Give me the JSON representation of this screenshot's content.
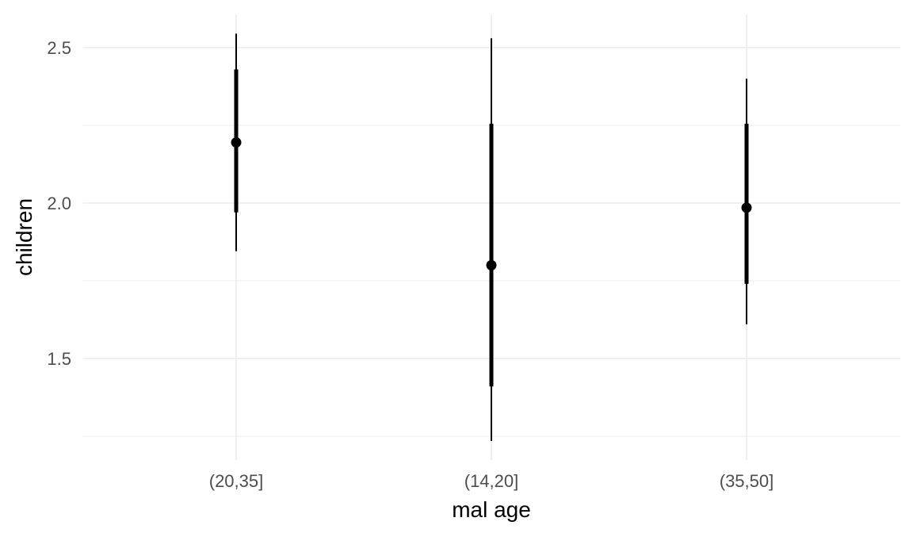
{
  "chart_data": {
    "type": "pointrange",
    "xlabel": "mal age",
    "ylabel": "children",
    "categories": [
      "(20,35]",
      "(14,20]",
      "(35,50]"
    ],
    "points": [
      {
        "category": "(20,35]",
        "estimate": 2.195,
        "inner": [
          1.97,
          2.43
        ],
        "outer": [
          1.845,
          2.545
        ]
      },
      {
        "category": "(14,20]",
        "estimate": 1.8,
        "inner": [
          1.41,
          2.255
        ],
        "outer": [
          1.235,
          2.53
        ]
      },
      {
        "category": "(35,50]",
        "estimate": 1.985,
        "inner": [
          1.74,
          2.255
        ],
        "outer": [
          1.61,
          2.4
        ]
      }
    ],
    "y_ticks": [
      1.5,
      2.0,
      2.5
    ],
    "y_tick_labels": [
      "1.5",
      "2.0",
      "2.5"
    ],
    "ylim": [
      1.2,
      2.61
    ],
    "grid": true,
    "legend": "none",
    "colors": {
      "mark": "#000000",
      "grid": "#ebebeb",
      "tick_text": "#4d4d4d"
    }
  }
}
